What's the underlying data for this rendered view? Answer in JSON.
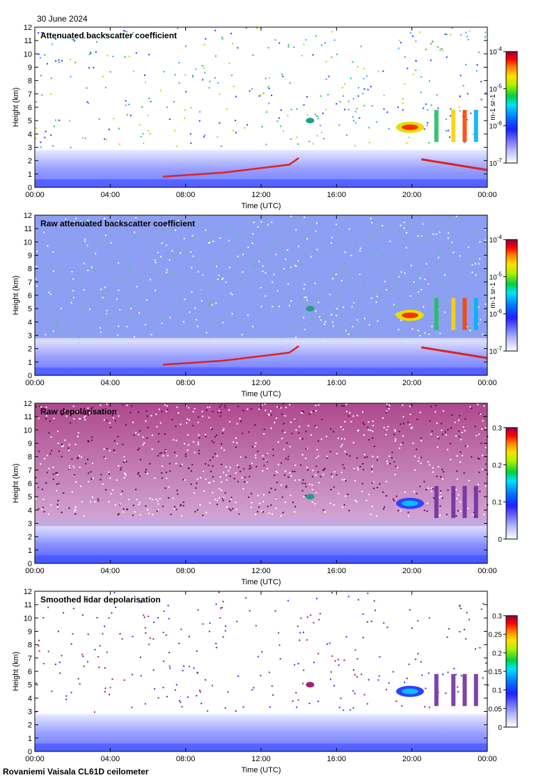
{
  "header": {
    "date": "30 June 2024"
  },
  "footer": {
    "instrument": "Rovaniemi Vaisala CL61D ceilometer"
  },
  "chart_data": [
    {
      "type": "heatmap",
      "title": "Attenuated backscatter coefficient",
      "xlabel": "Time (UTC)",
      "ylabel": "Height (km)",
      "xlim": [
        "00:00",
        "24:00"
      ],
      "xticks": [
        "00:00",
        "04:00",
        "08:00",
        "12:00",
        "16:00",
        "20:00",
        "00:00"
      ],
      "ylim": [
        0,
        12
      ],
      "yticks": [
        0,
        1,
        2,
        3,
        4,
        5,
        6,
        7,
        8,
        9,
        10,
        11,
        12
      ],
      "colorbar": {
        "scale": "log",
        "range": [
          1e-07,
          0.0001
        ],
        "unit": "m-1 sr-1",
        "ticks": [
          {
            "base": "10",
            "exp": "-7"
          },
          {
            "base": "10",
            "exp": "-6"
          },
          {
            "base": "10",
            "exp": "-5"
          },
          {
            "base": "10",
            "exp": "-4"
          }
        ]
      }
    },
    {
      "type": "heatmap",
      "title": "Raw attenuated backscatter coefficient",
      "xlabel": "Time (UTC)",
      "ylabel": "Height (km)",
      "xlim": [
        "00:00",
        "24:00"
      ],
      "xticks": [
        "00:00",
        "04:00",
        "08:00",
        "12:00",
        "16:00",
        "20:00",
        "00:00"
      ],
      "ylim": [
        0,
        12
      ],
      "yticks": [
        0,
        1,
        2,
        3,
        4,
        5,
        6,
        7,
        8,
        9,
        10,
        11,
        12
      ],
      "colorbar": {
        "scale": "log",
        "range": [
          1e-07,
          0.0001
        ],
        "unit": "m-1 sr-1",
        "ticks": [
          {
            "base": "10",
            "exp": "-7"
          },
          {
            "base": "10",
            "exp": "-6"
          },
          {
            "base": "10",
            "exp": "-5"
          },
          {
            "base": "10",
            "exp": "-4"
          }
        ]
      }
    },
    {
      "type": "heatmap",
      "title": "Raw depolarisation",
      "xlabel": "Time (UTC)",
      "ylabel": "Height (km)",
      "xlim": [
        "00:00",
        "24:00"
      ],
      "xticks": [
        "00:00",
        "04:00",
        "08:00",
        "12:00",
        "16:00",
        "20:00",
        "00:00"
      ],
      "ylim": [
        0,
        12
      ],
      "yticks": [
        0,
        1,
        2,
        3,
        4,
        5,
        6,
        7,
        8,
        9,
        10,
        11,
        12
      ],
      "colorbar": {
        "scale": "linear",
        "range": [
          0,
          0.3
        ],
        "unit": "",
        "ticks": [
          "0",
          "0.1",
          "0.2",
          "0.3"
        ]
      }
    },
    {
      "type": "heatmap",
      "title": "Smoothed lidar depolarisation",
      "xlabel": "Time (UTC)",
      "ylabel": "Height (km)",
      "xlim": [
        "00:00",
        "24:00"
      ],
      "xticks": [
        "00:00",
        "04:00",
        "08:00",
        "12:00",
        "16:00",
        "20:00",
        "00:00"
      ],
      "ylim": [
        0,
        12
      ],
      "yticks": [
        0,
        1,
        2,
        3,
        4,
        5,
        6,
        7,
        8,
        9,
        10,
        11,
        12
      ],
      "colorbar": {
        "scale": "linear",
        "range": [
          0,
          0.3
        ],
        "unit": "",
        "ticks": [
          "0",
          "0.05",
          "0.1",
          "0.15",
          "0.2",
          "0.25",
          "0.3"
        ]
      }
    }
  ]
}
